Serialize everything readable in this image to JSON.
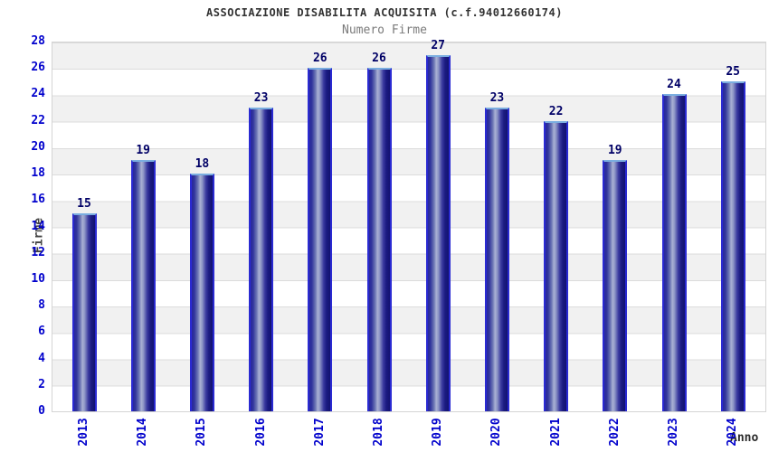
{
  "chart_data": {
    "type": "bar",
    "title": "ASSOCIAZIONE DISABILITA ACQUISITA (c.f.94012660174)",
    "subtitle": "Numero Firme",
    "xlabel": "Anno",
    "ylabel": "Firme",
    "categories": [
      "2013",
      "2014",
      "2015",
      "2016",
      "2017",
      "2018",
      "2019",
      "2020",
      "2021",
      "2022",
      "2023",
      "2024"
    ],
    "values": [
      15,
      19,
      18,
      23,
      26,
      26,
      27,
      23,
      22,
      19,
      24,
      25
    ],
    "ylim": [
      0,
      28
    ],
    "ytick_step": 2,
    "grid": "horizontal-bands-alternating",
    "legend": "none",
    "colors": {
      "tick_label": "#0000cc",
      "value_label": "#000066",
      "bar_side_border": "#2a2ad2",
      "bar_top_border": "#7aade0",
      "bar_gradient_dark": "#1c1c82",
      "bar_gradient_light": "#a9b0d4",
      "band_gray": "#f1f1f1",
      "band_white": "#ffffff",
      "grid_line": "#dcdcdc",
      "plot_border": "#d4d4d4",
      "title": "#333333",
      "subtitle": "#7a7a7a",
      "axis_title": "#444444"
    }
  }
}
